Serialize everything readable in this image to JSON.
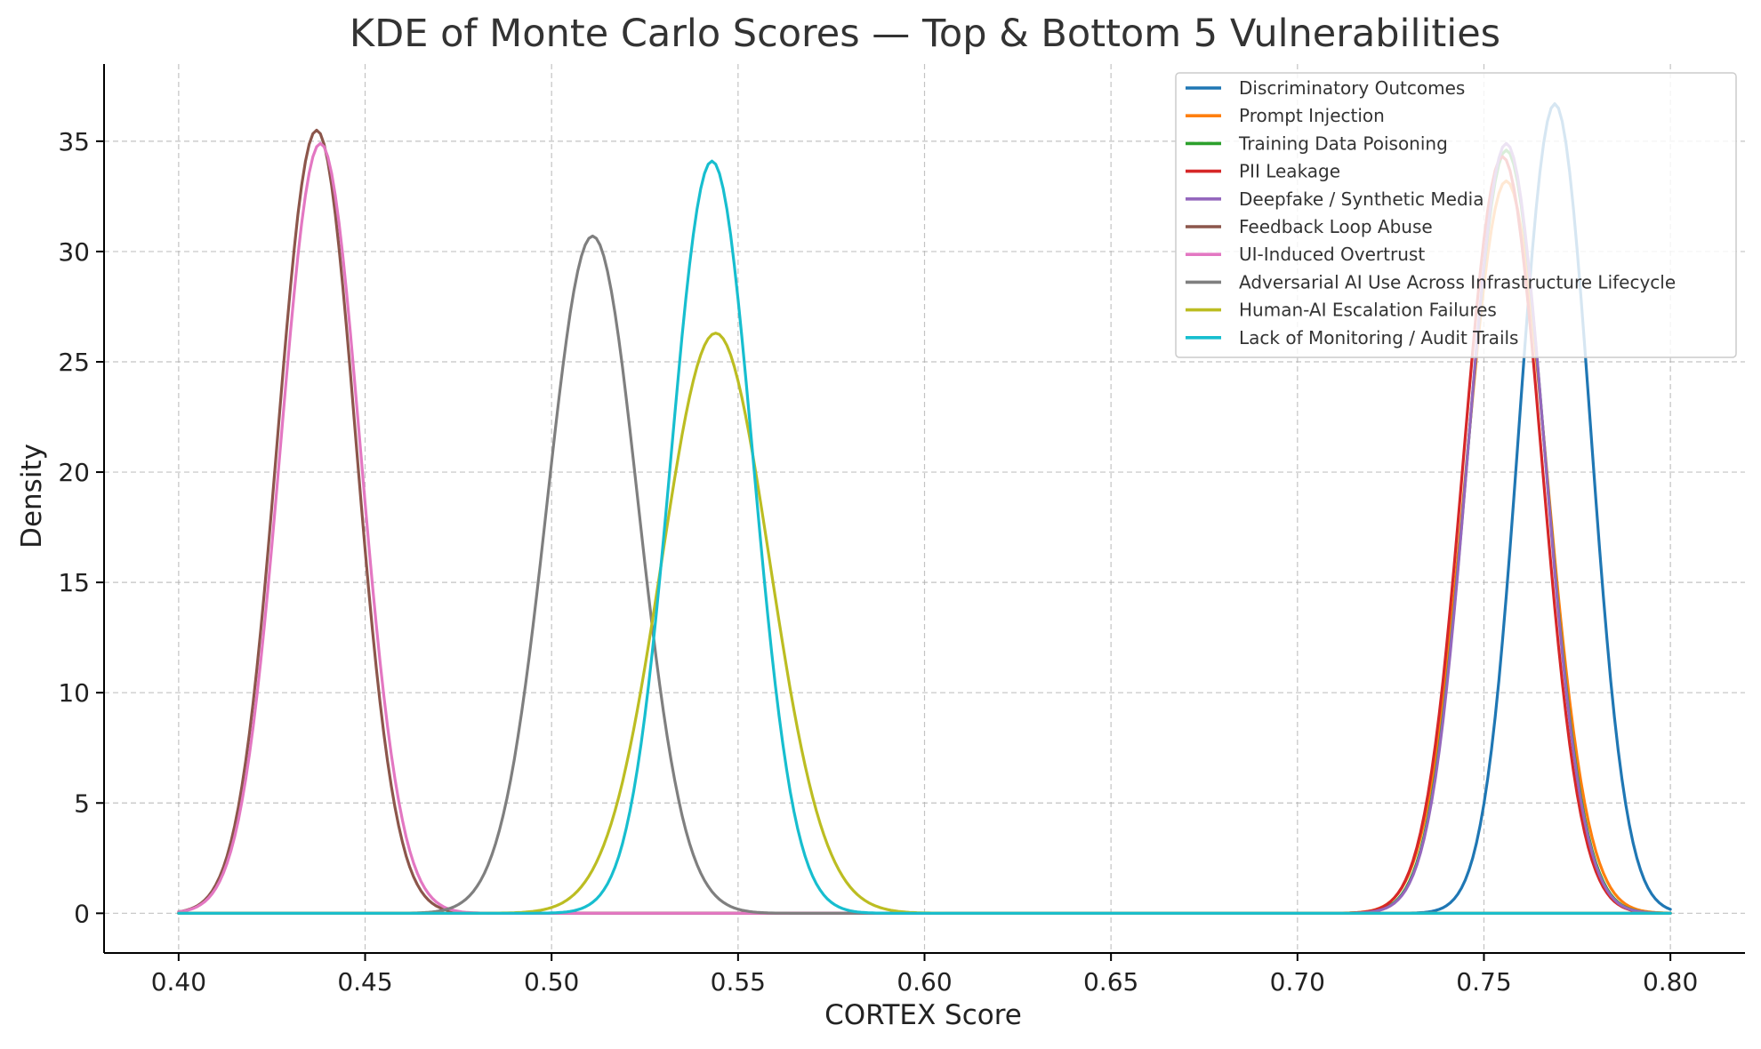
{
  "chart_data": {
    "type": "line",
    "title": "KDE of Monte Carlo Scores — Top & Bottom 5 Vulnerabilities",
    "xlabel": "CORTEX Score",
    "ylabel": "Density",
    "xlim": [
      0.38,
      0.82
    ],
    "ylim": [
      -1.8,
      38.5
    ],
    "x_ticks": [
      0.4,
      0.45,
      0.5,
      0.55,
      0.6,
      0.65,
      0.7,
      0.75,
      0.8
    ],
    "x_tick_labels": [
      "0.40",
      "0.45",
      "0.50",
      "0.55",
      "0.60",
      "0.65",
      "0.70",
      "0.75",
      "0.80"
    ],
    "y_ticks": [
      0,
      5,
      10,
      15,
      20,
      25,
      30,
      35
    ],
    "y_tick_labels": [
      "0",
      "5",
      "10",
      "15",
      "20",
      "25",
      "30",
      "35"
    ],
    "grid": true,
    "legend_position": "top-right",
    "x_domain": [
      0.4,
      0.8
    ],
    "series": [
      {
        "name": "Discriminatory Outcomes",
        "color": "#1f77b4",
        "peak_x": 0.769,
        "peak_y": 36.7,
        "sigma": 0.0095
      },
      {
        "name": "Prompt Injection",
        "color": "#ff7f0e",
        "peak_x": 0.756,
        "peak_y": 33.2,
        "sigma": 0.0108
      },
      {
        "name": "Training Data Poisoning",
        "color": "#2ca02c",
        "peak_x": 0.756,
        "peak_y": 34.6,
        "sigma": 0.0103
      },
      {
        "name": "PII Leakage",
        "color": "#d62728",
        "peak_x": 0.755,
        "peak_y": 34.3,
        "sigma": 0.0104
      },
      {
        "name": "Deepfake / Synthetic Media",
        "color": "#9467bd",
        "peak_x": 0.756,
        "peak_y": 34.9,
        "sigma": 0.0102
      },
      {
        "name": "Feedback Loop Abuse",
        "color": "#8c564b",
        "peak_x": 0.437,
        "peak_y": 35.5,
        "sigma": 0.0105
      },
      {
        "name": "UI-Induced Overtrust",
        "color": "#e377c2",
        "peak_x": 0.438,
        "peak_y": 34.9,
        "sigma": 0.0107
      },
      {
        "name": "Adversarial AI Use Across Infrastructure Lifecycle",
        "color": "#7f7f7f",
        "peak_x": 0.511,
        "peak_y": 30.7,
        "sigma": 0.0122
      },
      {
        "name": "Human-AI Escalation Failures",
        "color": "#bcbd22",
        "peak_x": 0.544,
        "peak_y": 26.3,
        "sigma": 0.0145
      },
      {
        "name": "Lack of Monitoring / Audit Trails",
        "color": "#17becf",
        "peak_x": 0.543,
        "peak_y": 34.1,
        "sigma": 0.011
      }
    ]
  }
}
